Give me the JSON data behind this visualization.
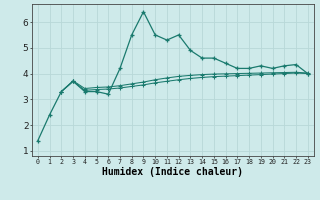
{
  "xlabel": "Humidex (Indice chaleur)",
  "background_color": "#ceeaea",
  "line_color": "#1a7a6e",
  "x_ticks": [
    0,
    1,
    2,
    3,
    4,
    5,
    6,
    7,
    8,
    9,
    10,
    11,
    12,
    13,
    14,
    15,
    16,
    17,
    18,
    19,
    20,
    21,
    22,
    23
  ],
  "ylim": [
    0.8,
    6.7
  ],
  "xlim": [
    -0.5,
    23.5
  ],
  "series1_x": [
    0,
    1,
    2,
    3,
    4,
    5,
    6,
    7,
    8,
    9,
    10,
    11,
    12,
    13,
    14,
    15,
    16,
    17,
    18,
    19,
    20,
    21,
    22,
    23
  ],
  "series1_y": [
    1.4,
    2.4,
    3.3,
    3.7,
    3.3,
    3.3,
    3.2,
    4.2,
    5.5,
    6.4,
    5.5,
    5.3,
    5.5,
    4.9,
    4.6,
    4.6,
    4.4,
    4.2,
    4.2,
    4.3,
    4.2,
    4.3,
    4.35,
    4.0
  ],
  "series2_x": [
    2,
    3,
    4,
    5,
    6,
    7,
    8,
    9,
    10,
    11,
    12,
    13,
    14,
    15,
    16,
    17,
    18,
    19,
    20,
    21,
    22,
    23
  ],
  "series2_y": [
    3.3,
    3.7,
    3.35,
    3.38,
    3.4,
    3.44,
    3.5,
    3.56,
    3.64,
    3.7,
    3.76,
    3.81,
    3.85,
    3.88,
    3.9,
    3.92,
    3.94,
    3.96,
    3.98,
    4.0,
    4.02,
    4.0
  ],
  "series3_x": [
    2,
    3,
    4,
    5,
    6,
    7,
    8,
    9,
    10,
    11,
    12,
    13,
    14,
    15,
    16,
    17,
    18,
    19,
    20,
    21,
    22,
    23
  ],
  "series3_y": [
    3.3,
    3.72,
    3.42,
    3.46,
    3.48,
    3.53,
    3.6,
    3.67,
    3.76,
    3.83,
    3.89,
    3.93,
    3.96,
    3.98,
    3.99,
    4.0,
    4.01,
    4.02,
    4.03,
    4.04,
    4.05,
    4.02
  ],
  "yticks": [
    1,
    2,
    3,
    4,
    5,
    6
  ],
  "grid_color": "#b8d8d8",
  "xlabel_fontsize": 7
}
